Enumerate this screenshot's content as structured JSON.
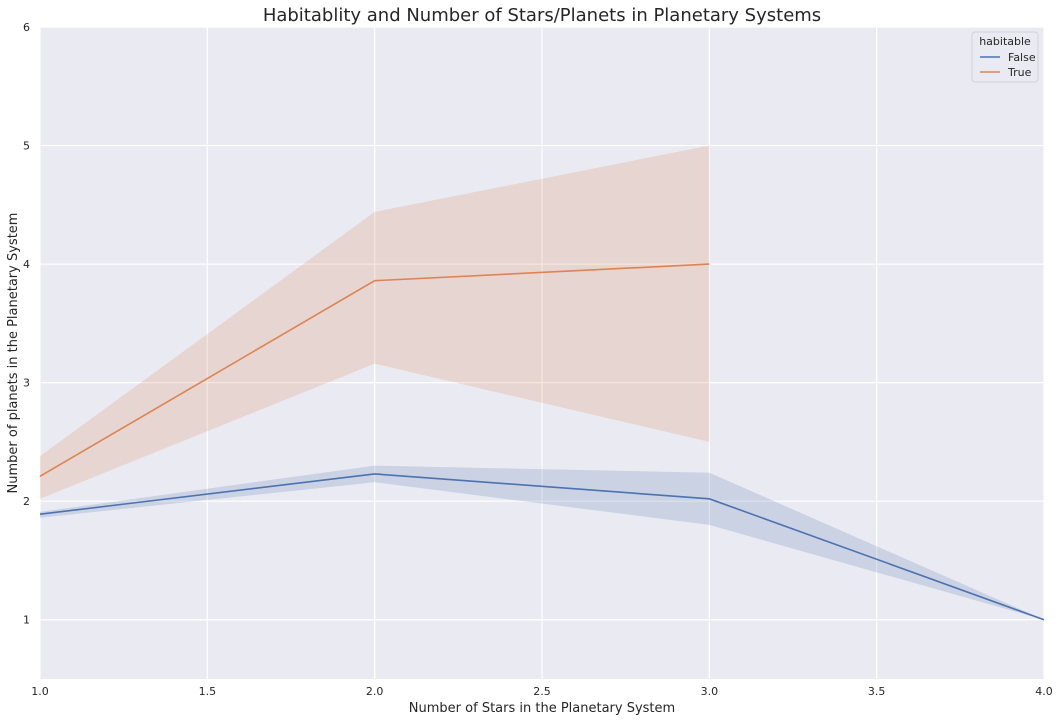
{
  "chart_data": {
    "type": "line",
    "title": "Habitablity and Number of Stars/Planets in Planetary Systems",
    "xlabel": "Number of Stars in the Planetary System",
    "ylabel": "Number of planets in the Planetary System",
    "xlim": [
      1.0,
      4.0
    ],
    "ylim": [
      0.5,
      6.0
    ],
    "xticks": [
      1.0,
      1.5,
      2.0,
      2.5,
      3.0,
      3.5,
      4.0
    ],
    "xtick_labels": [
      "1.0",
      "1.5",
      "2.0",
      "2.5",
      "3.0",
      "3.5",
      "4.0"
    ],
    "yticks": [
      1,
      2,
      3,
      4,
      5,
      6
    ],
    "ytick_labels": [
      "1",
      "2",
      "3",
      "4",
      "5",
      "6"
    ],
    "grid": true,
    "background": "#eaeaf2",
    "legend": {
      "title": "habitable",
      "placement": "top-right"
    },
    "series": [
      {
        "name": "False",
        "color": "#4c72b0",
        "x": [
          1,
          2,
          3,
          4
        ],
        "y": [
          1.89,
          2.23,
          2.02,
          1.0
        ],
        "ci_low": [
          1.86,
          2.16,
          1.8,
          1.0
        ],
        "ci_high": [
          1.91,
          2.3,
          2.24,
          1.0
        ]
      },
      {
        "name": "True",
        "color": "#dd8452",
        "x": [
          1,
          2,
          3
        ],
        "y": [
          2.21,
          3.86,
          4.0
        ],
        "ci_low": [
          2.02,
          3.16,
          2.5
        ],
        "ci_high": [
          2.38,
          4.44,
          5.0
        ]
      }
    ]
  }
}
